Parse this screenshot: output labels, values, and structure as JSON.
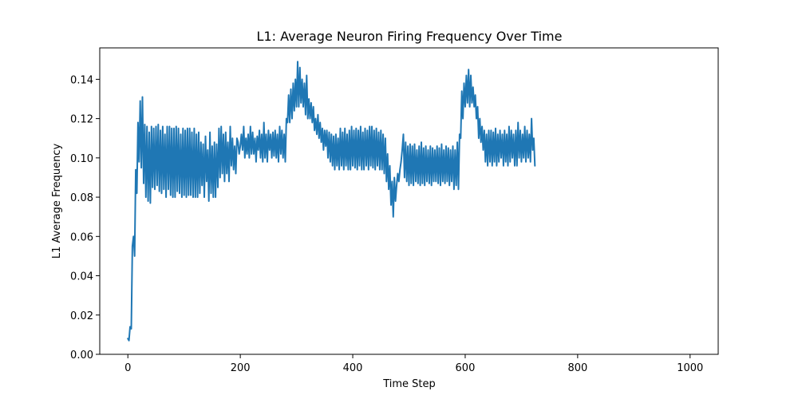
{
  "chart_data": {
    "type": "line",
    "title": "L1: Average Neuron Firing Frequency Over Time",
    "xlabel": "Time Step",
    "ylabel": "L1 Average Frequency",
    "xlim": [
      -50,
      1050
    ],
    "ylim": [
      0.0,
      0.156
    ],
    "x_ticks": [
      0,
      200,
      400,
      600,
      800,
      1000
    ],
    "x_tick_labels": [
      "0",
      "200",
      "400",
      "600",
      "800",
      "1000"
    ],
    "y_ticks": [
      0.0,
      0.02,
      0.04,
      0.06,
      0.08,
      0.1,
      0.12,
      0.14
    ],
    "y_tick_labels": [
      "0.00",
      "0.02",
      "0.04",
      "0.06",
      "0.08",
      "0.10",
      "0.12",
      "0.14"
    ],
    "grid": false,
    "series": [
      {
        "color": "#1f77b4",
        "x_start": 0,
        "x_step": 2,
        "values": [
          0.008,
          0.007,
          0.014,
          0.013,
          0.055,
          0.06,
          0.05,
          0.094,
          0.082,
          0.118,
          0.098,
          0.129,
          0.095,
          0.131,
          0.087,
          0.117,
          0.08,
          0.116,
          0.078,
          0.113,
          0.077,
          0.116,
          0.085,
          0.115,
          0.084,
          0.116,
          0.086,
          0.117,
          0.083,
          0.114,
          0.082,
          0.116,
          0.084,
          0.112,
          0.08,
          0.116,
          0.084,
          0.116,
          0.081,
          0.115,
          0.08,
          0.115,
          0.08,
          0.116,
          0.083,
          0.115,
          0.082,
          0.112,
          0.08,
          0.115,
          0.081,
          0.114,
          0.08,
          0.115,
          0.081,
          0.115,
          0.081,
          0.113,
          0.08,
          0.115,
          0.08,
          0.112,
          0.08,
          0.113,
          0.082,
          0.108,
          0.086,
          0.107,
          0.08,
          0.111,
          0.088,
          0.104,
          0.078,
          0.113,
          0.082,
          0.106,
          0.08,
          0.108,
          0.08,
          0.107,
          0.085,
          0.115,
          0.09,
          0.116,
          0.092,
          0.112,
          0.088,
          0.113,
          0.092,
          0.108,
          0.088,
          0.116,
          0.096,
          0.11,
          0.094,
          0.106,
          0.092,
          0.11,
          0.108,
          0.102,
          0.106,
          0.112,
          0.104,
          0.116,
          0.1,
          0.11,
          0.102,
          0.112,
          0.1,
          0.116,
          0.102,
          0.113,
          0.102,
          0.11,
          0.098,
          0.111,
          0.104,
          0.114,
          0.1,
          0.112,
          0.098,
          0.118,
          0.1,
          0.112,
          0.098,
          0.114,
          0.104,
          0.112,
          0.1,
          0.113,
          0.101,
          0.114,
          0.1,
          0.112,
          0.098,
          0.116,
          0.102,
          0.114,
          0.1,
          0.112,
          0.098,
          0.12,
          0.118,
          0.132,
          0.118,
          0.135,
          0.12,
          0.138,
          0.124,
          0.14,
          0.126,
          0.149,
          0.126,
          0.146,
          0.128,
          0.14,
          0.126,
          0.138,
          0.122,
          0.142,
          0.12,
          0.13,
          0.12,
          0.128,
          0.118,
          0.126,
          0.114,
          0.12,
          0.112,
          0.122,
          0.11,
          0.118,
          0.108,
          0.115,
          0.104,
          0.114,
          0.106,
          0.114,
          0.1,
          0.113,
          0.098,
          0.112,
          0.096,
          0.111,
          0.094,
          0.112,
          0.096,
          0.11,
          0.094,
          0.115,
          0.096,
          0.113,
          0.094,
          0.115,
          0.096,
          0.112,
          0.094,
          0.114,
          0.094,
          0.116,
          0.096,
          0.114,
          0.095,
          0.115,
          0.094,
          0.114,
          0.096,
          0.116,
          0.094,
          0.113,
          0.094,
          0.115,
          0.096,
          0.114,
          0.094,
          0.116,
          0.096,
          0.116,
          0.095,
          0.114,
          0.094,
          0.115,
          0.096,
          0.113,
          0.094,
          0.114,
          0.094,
          0.112,
          0.092,
          0.11,
          0.088,
          0.102,
          0.084,
          0.096,
          0.076,
          0.088,
          0.07,
          0.09,
          0.078,
          0.086,
          0.092,
          0.088,
          0.094,
          0.098,
          0.104,
          0.112,
          0.09,
          0.108,
          0.088,
          0.106,
          0.086,
          0.107,
          0.087,
          0.106,
          0.086,
          0.107,
          0.088,
          0.104,
          0.087,
          0.106,
          0.086,
          0.108,
          0.087,
          0.105,
          0.086,
          0.106,
          0.088,
          0.104,
          0.087,
          0.106,
          0.086,
          0.105,
          0.088,
          0.104,
          0.088,
          0.106,
          0.087,
          0.105,
          0.086,
          0.107,
          0.088,
          0.104,
          0.087,
          0.106,
          0.088,
          0.105,
          0.086,
          0.104,
          0.088,
          0.106,
          0.084,
          0.104,
          0.086,
          0.108,
          0.084,
          0.112,
          0.11,
          0.134,
          0.12,
          0.138,
          0.126,
          0.142,
          0.128,
          0.145,
          0.126,
          0.142,
          0.128,
          0.136,
          0.126,
          0.132,
          0.12,
          0.126,
          0.11,
          0.12,
          0.108,
          0.116,
          0.104,
          0.114,
          0.098,
          0.112,
          0.096,
          0.114,
          0.098,
          0.114,
          0.096,
          0.113,
          0.098,
          0.115,
          0.096,
          0.112,
          0.098,
          0.114,
          0.1,
          0.112,
          0.096,
          0.114,
          0.098,
          0.112,
          0.096,
          0.116,
          0.098,
          0.114,
          0.1,
          0.112,
          0.096,
          0.114,
          0.096,
          0.118,
          0.1,
          0.114,
          0.098,
          0.112,
          0.1,
          0.116,
          0.098,
          0.114,
          0.1,
          0.112,
          0.098,
          0.12,
          0.104,
          0.11,
          0.096
        ]
      }
    ]
  }
}
